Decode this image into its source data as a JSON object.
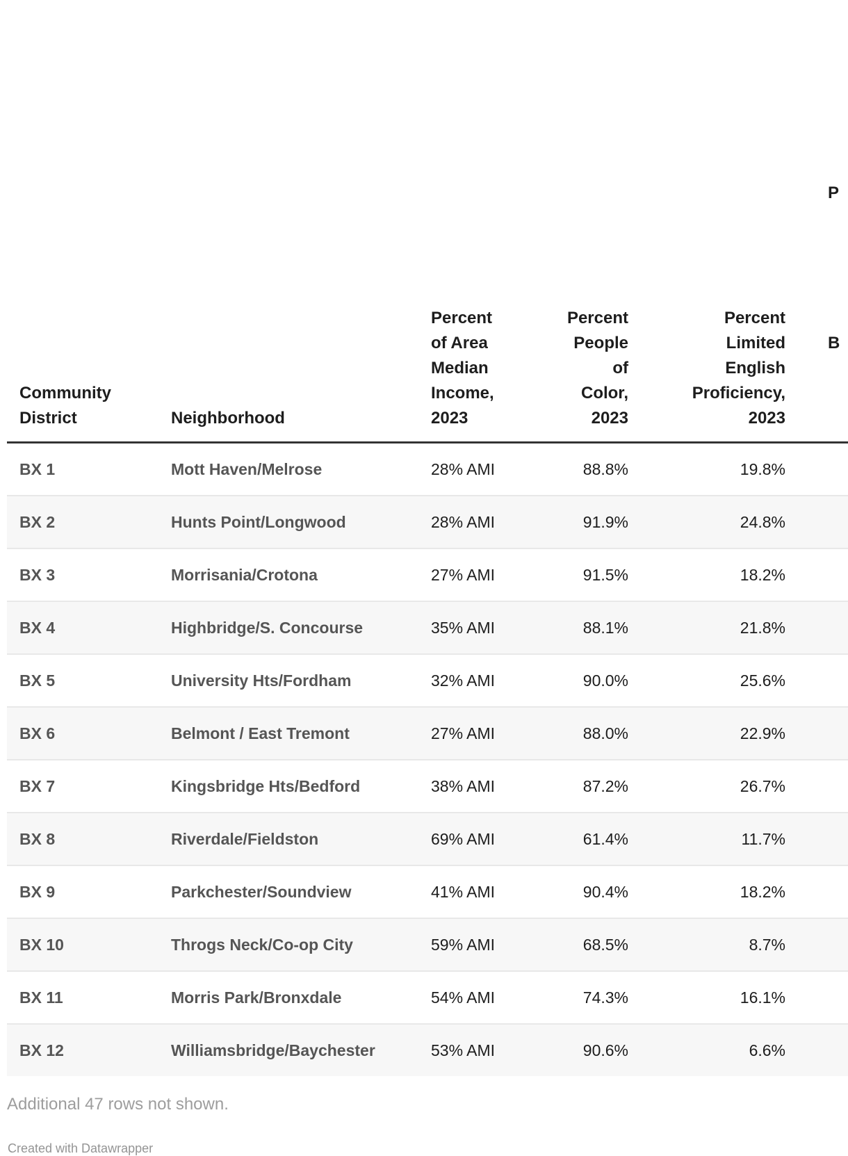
{
  "chart_data": {
    "type": "table",
    "columns": [
      {
        "id": "district",
        "label": "Community\nDistrict",
        "align": "left"
      },
      {
        "id": "neighborhood",
        "label": "Neighborhood",
        "align": "left"
      },
      {
        "id": "ami",
        "label": "Percent\nof Area\nMedian\nIncome,\n2023",
        "align": "left"
      },
      {
        "id": "poc",
        "label": "Percent\nPeople\nof\nColor,\n2023",
        "align": "right"
      },
      {
        "id": "lep",
        "label": "Percent\nLimited\nEnglish\nProficiency,\n2023",
        "align": "right"
      },
      {
        "id": "cropped",
        "label_visible_fragments": [
          "P",
          "",
          "",
          "B",
          ""
        ],
        "align": "left"
      }
    ],
    "rows": [
      {
        "district": "BX 1",
        "neighborhood": "Mott Haven/Melrose",
        "ami": "28% AMI",
        "poc": "88.8%",
        "lep": "19.8%"
      },
      {
        "district": "BX 2",
        "neighborhood": "Hunts Point/Longwood",
        "ami": "28% AMI",
        "poc": "91.9%",
        "lep": "24.8%"
      },
      {
        "district": "BX 3",
        "neighborhood": "Morrisania/Crotona",
        "ami": "27% AMI",
        "poc": "91.5%",
        "lep": "18.2%"
      },
      {
        "district": "BX 4",
        "neighborhood": "Highbridge/S. Concourse",
        "ami": "35% AMI",
        "poc": "88.1%",
        "lep": "21.8%"
      },
      {
        "district": "BX 5",
        "neighborhood": "University Hts/Fordham",
        "ami": "32% AMI",
        "poc": "90.0%",
        "lep": "25.6%"
      },
      {
        "district": "BX 6",
        "neighborhood": "Belmont / East Tremont",
        "ami": "27% AMI",
        "poc": "88.0%",
        "lep": "22.9%"
      },
      {
        "district": "BX 7",
        "neighborhood": "Kingsbridge Hts/Bedford",
        "ami": "38% AMI",
        "poc": "87.2%",
        "lep": "26.7%"
      },
      {
        "district": "BX 8",
        "neighborhood": "Riverdale/Fieldston",
        "ami": "69% AMI",
        "poc": "61.4%",
        "lep": "11.7%"
      },
      {
        "district": "BX 9",
        "neighborhood": "Parkchester/Soundview",
        "ami": "41% AMI",
        "poc": "90.4%",
        "lep": "18.2%"
      },
      {
        "district": "BX 10",
        "neighborhood": "Throgs Neck/Co-op City",
        "ami": "59% AMI",
        "poc": "68.5%",
        "lep": "8.7%"
      },
      {
        "district": "BX 11",
        "neighborhood": "Morris Park/Bronxdale",
        "ami": "54% AMI",
        "poc": "74.3%",
        "lep": "16.1%"
      },
      {
        "district": "BX 12",
        "neighborhood": "Williamsbridge/Baychester",
        "ami": "53% AMI",
        "poc": "90.6%",
        "lep": "6.6%"
      }
    ],
    "note": "Additional 47 rows not shown.",
    "attribution": "Created with Datawrapper",
    "layout_hints": {
      "grid": "striped-rows",
      "stripe_color": "#f7f7f7",
      "row_border_color": "#e8e8e8",
      "header_rule_color": "#333333",
      "header_text_color": "#1d1d1d",
      "label_text_color": "#555555",
      "value_text_color": "#1d1d1d",
      "note_text_color": "#9d9d9d",
      "attribution_text_color": "#949494"
    }
  }
}
